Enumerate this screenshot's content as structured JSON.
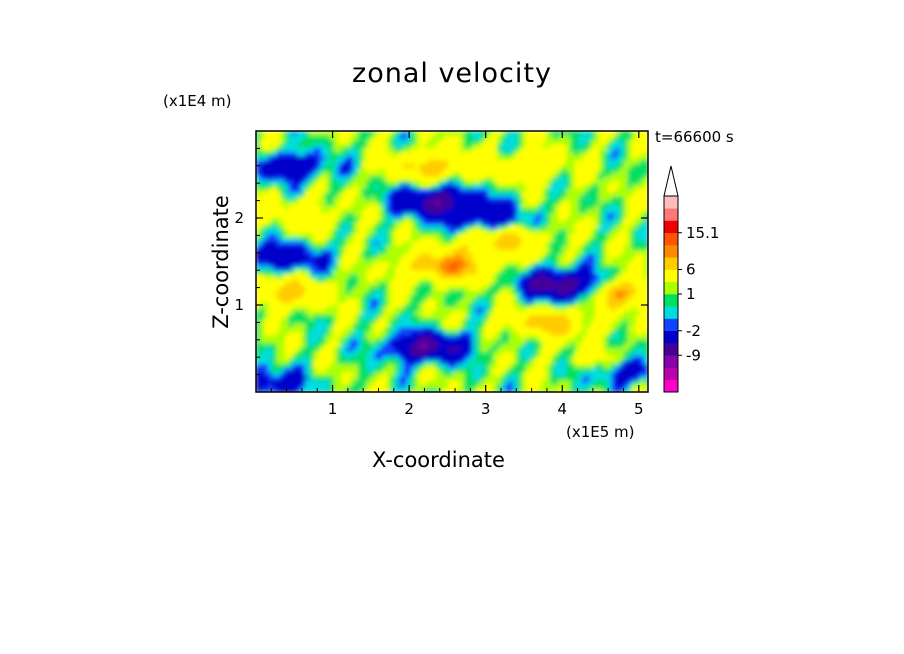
{
  "chart_data": {
    "type": "heatmap",
    "title": "zonal velocity",
    "xlabel": "X-coordinate",
    "ylabel": "Z-coordinate",
    "x_unit": "(x1E5 m)",
    "z_unit": "(x1E4 m)",
    "time_label": "t=66600 s",
    "x_ticks": [
      "1",
      "2",
      "3",
      "4",
      "5"
    ],
    "y_ticks": [
      "1",
      "2"
    ],
    "xlim": [
      0,
      5.12
    ],
    "ylim": [
      0,
      3.0
    ],
    "colorbar": {
      "levels": [
        "-15.1",
        "-12",
        "-9",
        "-6",
        "-2",
        "-1",
        "0",
        "1",
        "2",
        "6",
        "9",
        "12",
        "15.1"
      ],
      "tick_labels": [
        "15.1",
        "6",
        "1",
        "-2",
        "-9"
      ],
      "colors": [
        "#ff00cc",
        "#bb00aa",
        "#8800aa",
        "#440099",
        "#0000cc",
        "#1144ff",
        "#00dddd",
        "#00e060",
        "#aaff00",
        "#ffff00",
        "#ffcc00",
        "#ff8800",
        "#ff5500",
        "#ee0000",
        "#ff7777",
        "#ffbbbb"
      ],
      "overflow_color": "#ffffff"
    },
    "features": [
      {
        "x": 2.35,
        "z": 2.2,
        "value": -9
      },
      {
        "x": 3.0,
        "z": 2.0,
        "value": -6
      },
      {
        "x": 0.45,
        "z": 2.6,
        "value": -6
      },
      {
        "x": 0.35,
        "z": 1.55,
        "value": -6
      },
      {
        "x": 2.25,
        "z": 0.52,
        "value": -9
      },
      {
        "x": 4.0,
        "z": 1.25,
        "value": -9
      },
      {
        "x": 4.4,
        "z": 1.15,
        "value": -6
      },
      {
        "x": 4.85,
        "z": 0.25,
        "value": -6
      },
      {
        "x": 0.1,
        "z": 0.1,
        "value": -6
      },
      {
        "x": 4.7,
        "z": 1.15,
        "value": 12
      },
      {
        "x": 2.5,
        "z": 1.45,
        "value": 9
      },
      {
        "x": 3.2,
        "z": 1.75,
        "value": 6
      },
      {
        "x": 0.35,
        "z": 1.15,
        "value": 6
      },
      {
        "x": 2.3,
        "z": 2.6,
        "value": 6
      },
      {
        "x": 0.6,
        "z": 2.05,
        "value": 3
      },
      {
        "x": 3.6,
        "z": 2.6,
        "value": 3
      },
      {
        "x": 3.85,
        "z": 0.8,
        "value": 6
      },
      {
        "x": 4.6,
        "z": 0.35,
        "value": 3
      }
    ]
  }
}
